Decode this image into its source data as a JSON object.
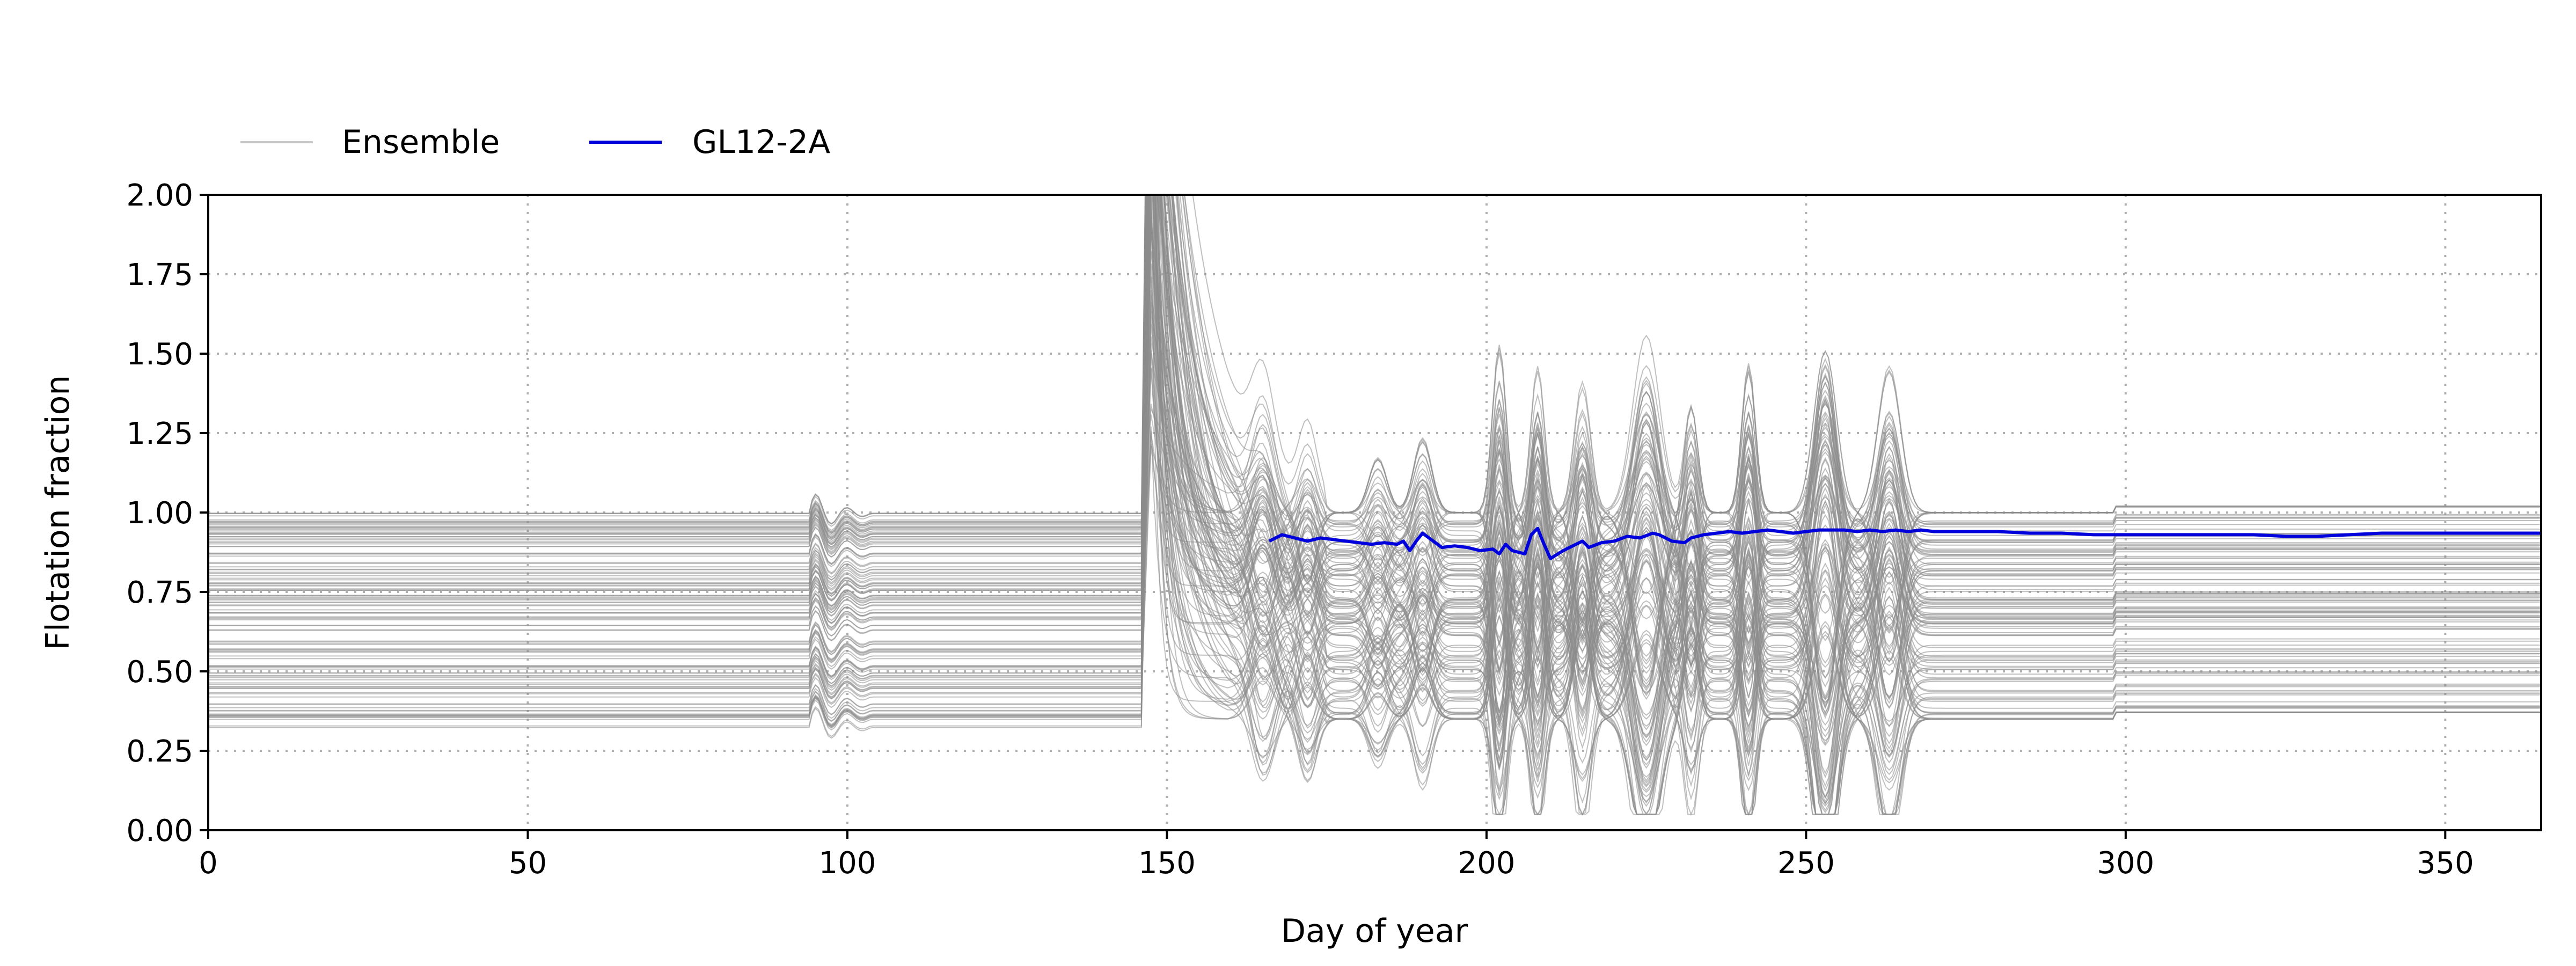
{
  "chart_data": {
    "type": "line",
    "xlabel": "Day of year",
    "ylabel": "Flotation fraction",
    "xlim": [
      0,
      365
    ],
    "ylim": [
      0,
      2.0
    ],
    "x_ticks": [
      0,
      50,
      100,
      150,
      200,
      250,
      300,
      350
    ],
    "x_tick_labels": [
      "0",
      "50",
      "100",
      "150",
      "200",
      "250",
      "300",
      "350"
    ],
    "y_ticks": [
      0,
      0.25,
      0.5,
      0.75,
      1.0,
      1.25,
      1.5,
      1.75,
      2.0
    ],
    "y_tick_labels": [
      "0.00",
      "0.25",
      "0.50",
      "0.75",
      "1.00",
      "1.25",
      "1.50",
      "1.75",
      "2.00"
    ],
    "grid": true,
    "grid_style": "dotted",
    "legend_position": "above plot, top-left",
    "legend": [
      {
        "label": "Ensemble",
        "color": "#b5b5b5"
      },
      {
        "label": "GL12-2A",
        "color": "#0000dd"
      }
    ],
    "ensemble": {
      "name": "Ensemble",
      "color": "#8c8c8c",
      "member_count": 120,
      "baseline_range": [
        0.3,
        1.1
      ],
      "events": [
        {
          "day": 95,
          "description": "small perturbation"
        },
        {
          "day": 147,
          "description": "large spike, values above 2.00"
        },
        {
          "day": 165,
          "description": "oscillations"
        },
        {
          "day": 200,
          "description": "oscillations, dips near 0.25"
        },
        {
          "day": 225,
          "description": "peak near 1.35"
        },
        {
          "day": 253,
          "description": "peak near 1.53"
        },
        {
          "day": 263,
          "description": "peak near 1.30"
        },
        {
          "day": 298,
          "description": "small step"
        }
      ]
    },
    "series": [
      {
        "name": "GL12-2A",
        "color": "#0000dd",
        "x": [
          166,
          168,
          170,
          172,
          174,
          176,
          178,
          180,
          182,
          184,
          186,
          187,
          188,
          189,
          190,
          191,
          193,
          195,
          197,
          199,
          201,
          202,
          203,
          204,
          206,
          207,
          208,
          209,
          210,
          212,
          214,
          215,
          216,
          218,
          220,
          222,
          224,
          226,
          227,
          229,
          231,
          232,
          234,
          236,
          238,
          240,
          242,
          244,
          246,
          248,
          250,
          252,
          254,
          256,
          258,
          260,
          262,
          264,
          266,
          268,
          270,
          275,
          280,
          285,
          290,
          295,
          300,
          305,
          310,
          315,
          320,
          325,
          330,
          335,
          340,
          345,
          350,
          355,
          360,
          365
        ],
        "values": [
          0.91,
          0.93,
          0.92,
          0.91,
          0.92,
          0.915,
          0.91,
          0.905,
          0.9,
          0.905,
          0.9,
          0.91,
          0.88,
          0.91,
          0.935,
          0.92,
          0.89,
          0.895,
          0.89,
          0.88,
          0.885,
          0.87,
          0.9,
          0.88,
          0.87,
          0.93,
          0.95,
          0.9,
          0.855,
          0.88,
          0.9,
          0.91,
          0.89,
          0.905,
          0.91,
          0.925,
          0.92,
          0.935,
          0.93,
          0.91,
          0.905,
          0.92,
          0.93,
          0.935,
          0.94,
          0.935,
          0.94,
          0.945,
          0.94,
          0.935,
          0.94,
          0.945,
          0.945,
          0.945,
          0.94,
          0.945,
          0.94,
          0.945,
          0.94,
          0.945,
          0.94,
          0.94,
          0.94,
          0.935,
          0.935,
          0.93,
          0.93,
          0.93,
          0.93,
          0.93,
          0.93,
          0.925,
          0.925,
          0.93,
          0.935,
          0.935,
          0.935,
          0.935,
          0.935,
          0.935
        ]
      }
    ]
  }
}
